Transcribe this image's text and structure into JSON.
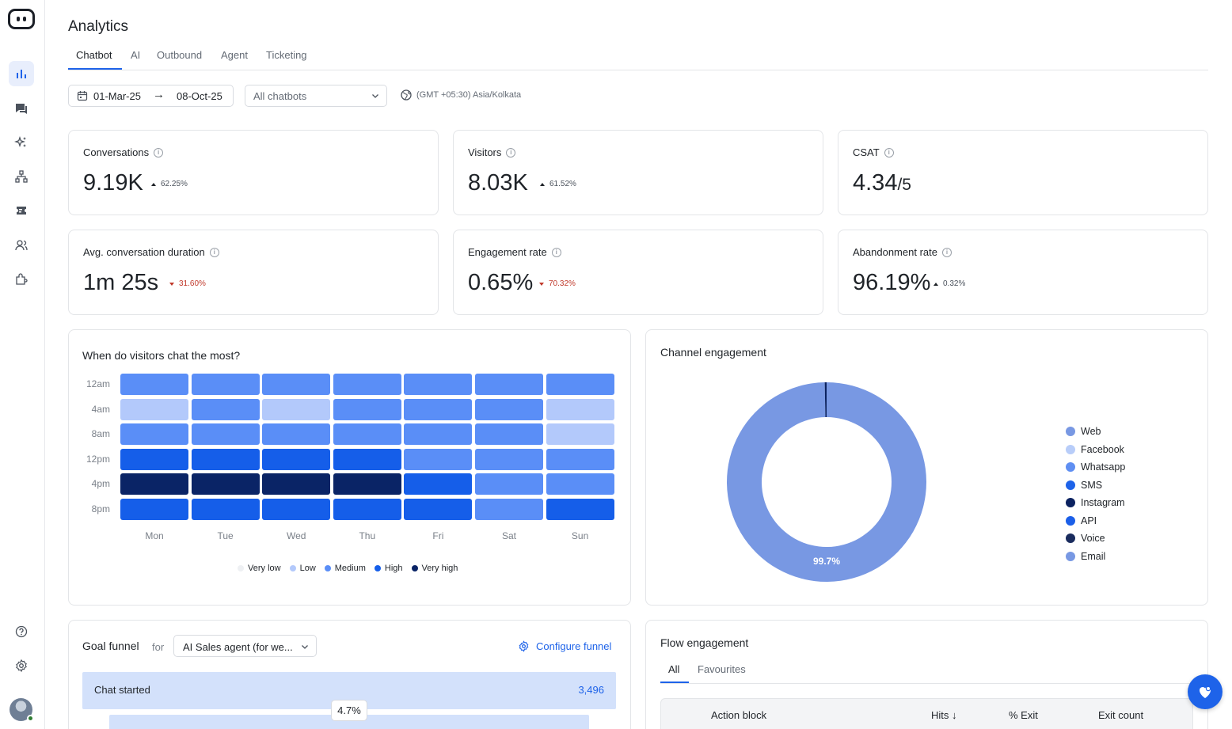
{
  "page": {
    "title": "Analytics"
  },
  "tabs": [
    {
      "label": "Chatbot",
      "active": true
    },
    {
      "label": "AI"
    },
    {
      "label": "Outbound"
    },
    {
      "label": "Agent"
    },
    {
      "label": "Ticketing"
    }
  ],
  "sidebar": {
    "items": [
      {
        "icon": "bar-chart-icon",
        "active": true
      },
      {
        "icon": "chat-icon"
      },
      {
        "icon": "sparkle-icon"
      },
      {
        "icon": "flow-tree-icon"
      },
      {
        "icon": "ticket-icon"
      },
      {
        "icon": "users-icon"
      },
      {
        "icon": "integrations-icon"
      }
    ],
    "bottom": [
      {
        "icon": "help-icon"
      },
      {
        "icon": "gear-icon"
      }
    ]
  },
  "filters": {
    "date_from": "01-Mar-25",
    "date_to": "08-Oct-25",
    "chatbot_select": "All chatbots",
    "timezone": "(GMT +05:30) Asia/Kolkata"
  },
  "kpis": [
    {
      "label": "Conversations",
      "value": "9.19K",
      "delta": "62.25%",
      "direction": "up"
    },
    {
      "label": "Visitors",
      "value": "8.03K",
      "delta": "61.52%",
      "direction": "up"
    },
    {
      "label": "CSAT",
      "value": "4.34",
      "suffix": "/5"
    },
    {
      "label": "Avg. conversation duration",
      "value": "1m 25s",
      "delta": "31.60%",
      "direction": "down"
    },
    {
      "label": "Engagement rate",
      "value": "0.65%",
      "delta": "70.32%",
      "direction": "down"
    },
    {
      "label": "Abandonment rate",
      "value": "96.19%",
      "delta": "0.32%",
      "direction": "up"
    }
  ],
  "heatmap": {
    "title": "When do visitors chat the most?",
    "rows": [
      "12am",
      "4am",
      "8am",
      "12pm",
      "4pm",
      "8pm"
    ],
    "cols": [
      "Mon",
      "Tue",
      "Wed",
      "Thu",
      "Fri",
      "Sat",
      "Sun"
    ],
    "levels": [
      [
        2,
        2,
        2,
        2,
        2,
        2,
        2
      ],
      [
        1,
        2,
        1,
        2,
        2,
        2,
        1
      ],
      [
        2,
        2,
        2,
        2,
        2,
        2,
        1
      ],
      [
        3,
        3,
        3,
        3,
        2,
        2,
        2
      ],
      [
        4,
        4,
        4,
        4,
        3,
        2,
        2
      ],
      [
        3,
        3,
        3,
        3,
        3,
        2,
        3
      ]
    ],
    "legend": [
      "Very low",
      "Low",
      "Medium",
      "High",
      "Very high"
    ],
    "colors": [
      "#eef0f3",
      "#b3c9fb",
      "#5a8ef7",
      "#155ee9",
      "#0a2466"
    ]
  },
  "channel": {
    "title": "Channel engagement",
    "label": "99.7%",
    "legend": [
      {
        "name": "Web",
        "color": "#7898e3"
      },
      {
        "name": "Facebook",
        "color": "#b8cdf9"
      },
      {
        "name": "Whatsapp",
        "color": "#5f8ff2"
      },
      {
        "name": "SMS",
        "color": "#1e63e9"
      },
      {
        "name": "Instagram",
        "color": "#0b2260"
      },
      {
        "name": "API",
        "color": "#1b5fe8"
      },
      {
        "name": "Voice",
        "color": "#1a2c5e"
      },
      {
        "name": "Email",
        "color": "#7898e3"
      }
    ]
  },
  "chart_data": {
    "type": "pie",
    "slices": [
      {
        "name": "Web",
        "value": 99.7
      },
      {
        "name": "Others",
        "value": 0.3
      }
    ]
  },
  "goal_funnel": {
    "title": "Goal funnel",
    "for": "for",
    "select": "AI Sales agent (for we...",
    "configure": "Configure funnel",
    "step_label": "Chat started",
    "step_value": "3,496",
    "conversion": "4.7%"
  },
  "flow_engagement": {
    "title": "Flow engagement",
    "tabs": [
      "All",
      "Favourites"
    ],
    "columns": [
      "Action block",
      "Hits",
      "% Exit",
      "Exit count"
    ]
  }
}
